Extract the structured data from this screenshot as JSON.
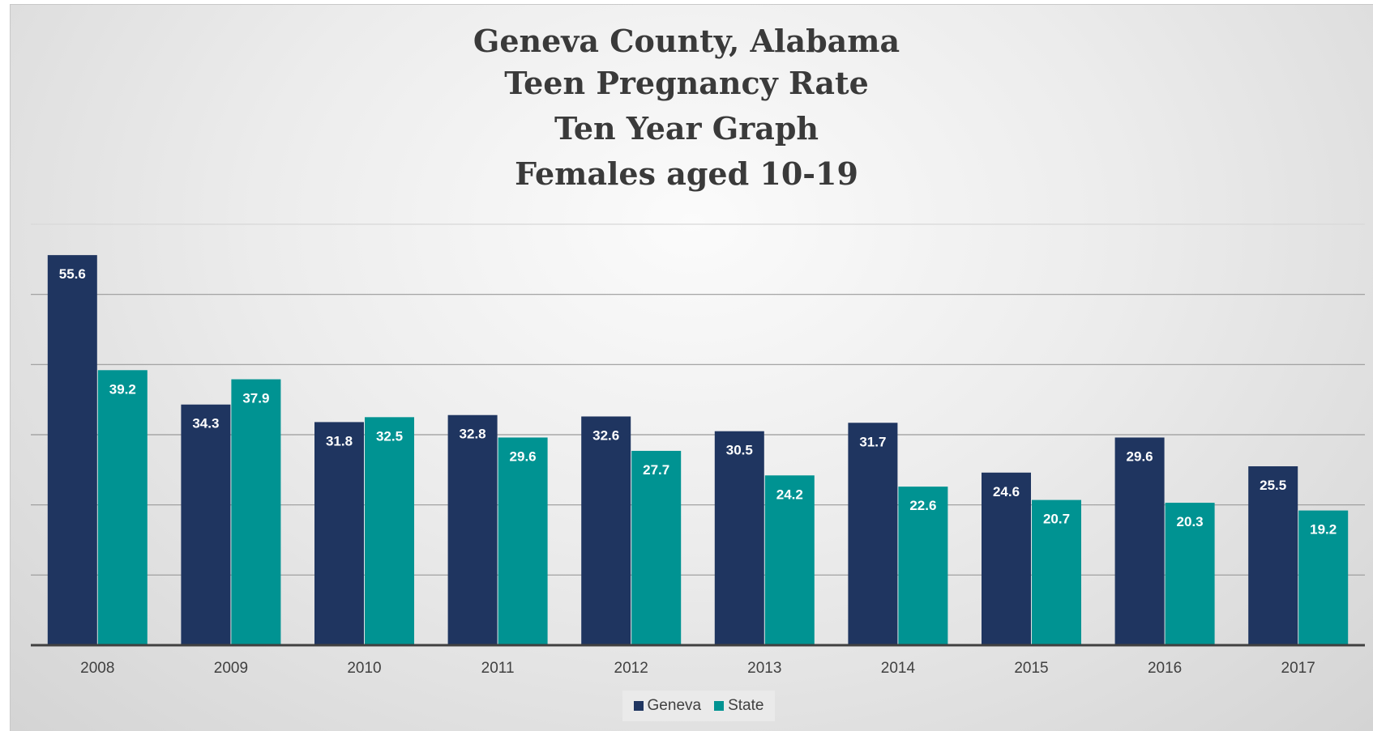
{
  "chart_data": {
    "type": "bar",
    "title_lines": [
      "Geneva County, Alabama",
      "Teen Pregnancy Rate",
      "Ten Year Graph",
      "Females aged 10-19"
    ],
    "categories": [
      "2008",
      "2009",
      "2010",
      "2011",
      "2012",
      "2013",
      "2014",
      "2015",
      "2016",
      "2017"
    ],
    "series": [
      {
        "name": "Geneva",
        "color": "#1f3560",
        "values": [
          55.6,
          34.3,
          31.8,
          32.8,
          32.6,
          30.5,
          31.7,
          24.6,
          29.6,
          25.5
        ]
      },
      {
        "name": "State",
        "color": "#009392",
        "values": [
          39.2,
          37.9,
          32.5,
          29.6,
          27.7,
          24.2,
          22.6,
          20.7,
          20.3,
          19.2
        ]
      }
    ],
    "ylim": [
      0,
      60
    ],
    "gridlines": true,
    "y_tick_labels_shown": false,
    "legend_position": "bottom",
    "data_labels": true
  }
}
